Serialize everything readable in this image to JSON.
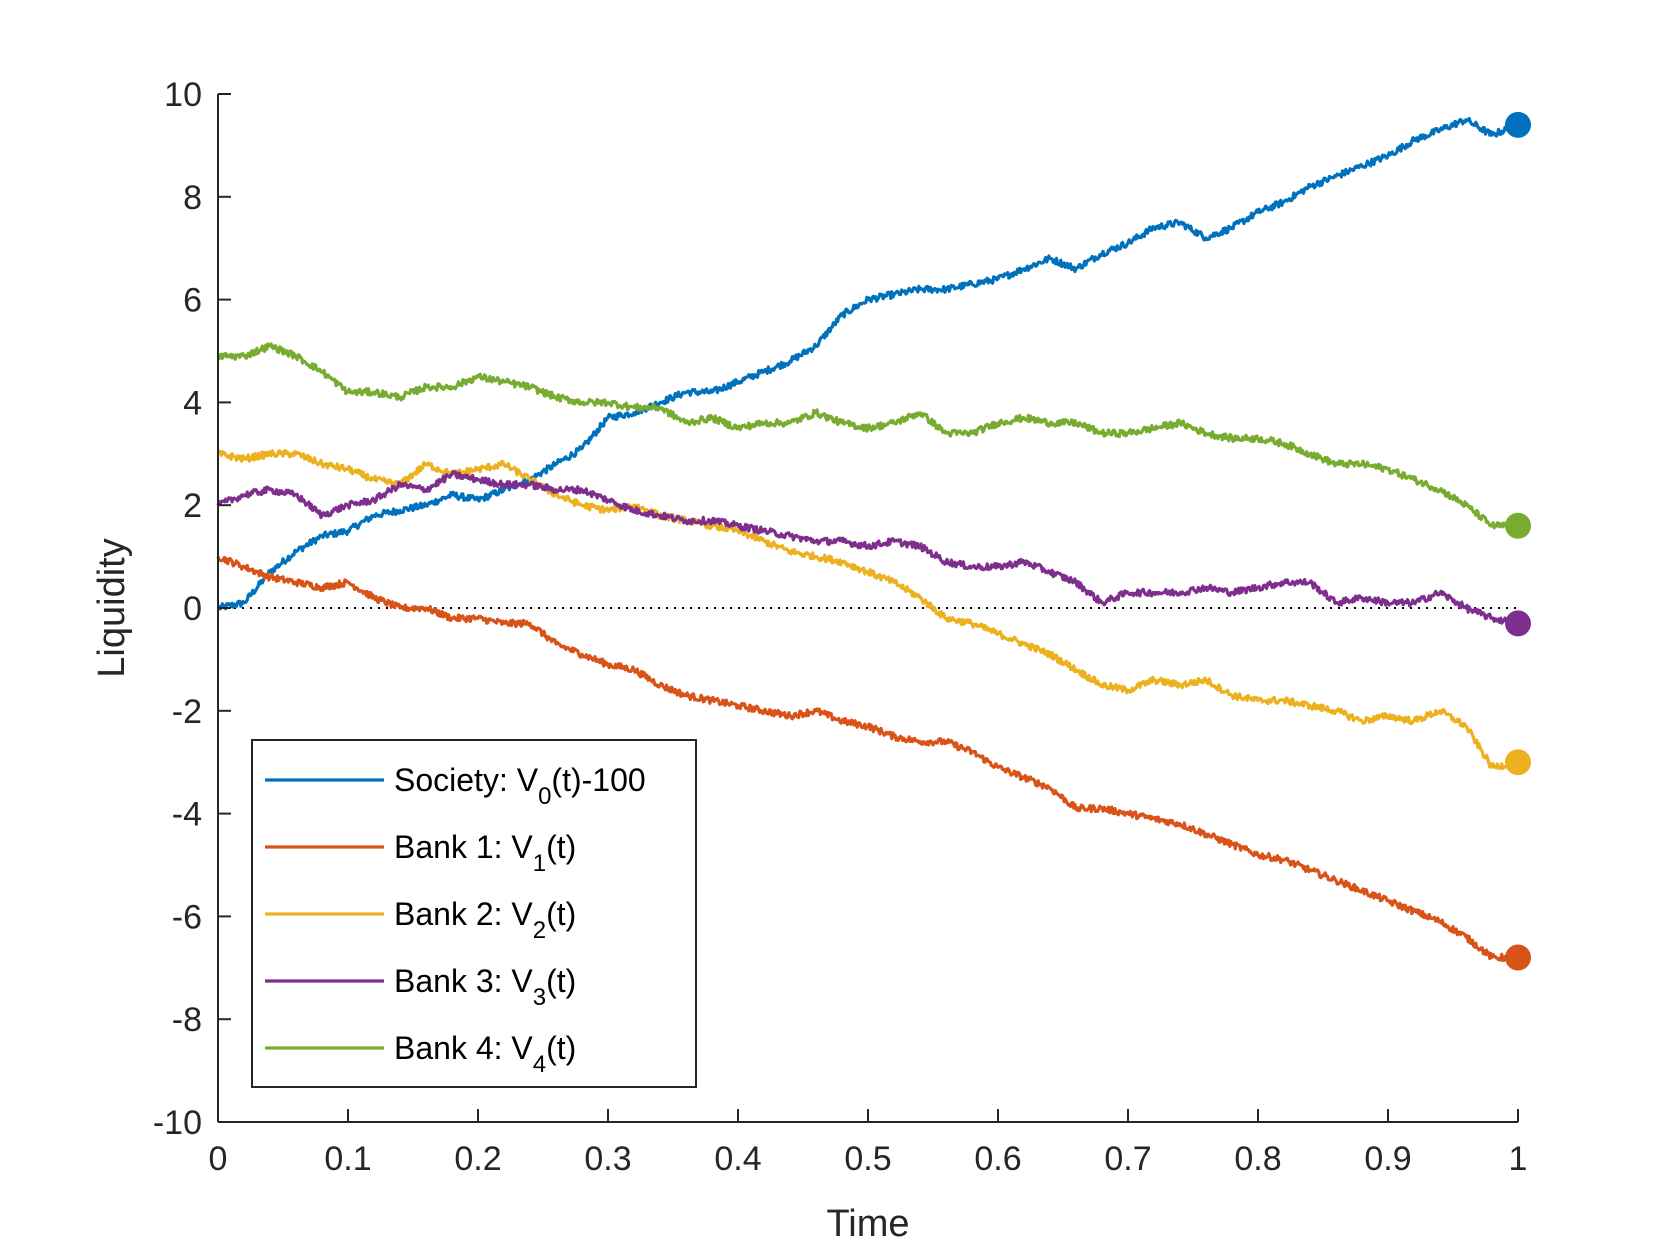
{
  "chart_data": {
    "type": "line",
    "xlabel": "Time",
    "ylabel": "Liquidity",
    "xlim": [
      0,
      1
    ],
    "ylim": [
      -10,
      10
    ],
    "xticks": [
      "0",
      "0.1",
      "0.2",
      "0.3",
      "0.4",
      "0.5",
      "0.6",
      "0.7",
      "0.8",
      "0.9",
      "1"
    ],
    "yticks": [
      "-10",
      "-8",
      "-6",
      "-4",
      "-2",
      "0",
      "2",
      "4",
      "6",
      "8",
      "10"
    ],
    "reference_line": {
      "y": 0,
      "style": "dotted"
    },
    "legend_position": "bottom-left",
    "series": [
      {
        "name": "Society: V0(t)-100",
        "label_prefix": "Society: V",
        "label_sub": "0",
        "label_suffix": "(t)-100",
        "color": "#0072BD",
        "end_marker": true,
        "x": [
          0,
          0.02,
          0.04,
          0.06,
          0.08,
          0.1,
          0.12,
          0.14,
          0.16,
          0.18,
          0.2,
          0.22,
          0.24,
          0.26,
          0.28,
          0.3,
          0.32,
          0.34,
          0.36,
          0.38,
          0.4,
          0.42,
          0.44,
          0.46,
          0.48,
          0.5,
          0.52,
          0.54,
          0.56,
          0.58,
          0.6,
          0.62,
          0.64,
          0.66,
          0.68,
          0.7,
          0.72,
          0.74,
          0.76,
          0.78,
          0.8,
          0.82,
          0.84,
          0.86,
          0.88,
          0.9,
          0.92,
          0.94,
          0.96,
          0.98,
          1
        ],
        "y": [
          0,
          0.1,
          0.7,
          1.1,
          1.4,
          1.5,
          1.8,
          1.9,
          2.0,
          2.2,
          2.1,
          2.3,
          2.5,
          2.8,
          3.1,
          3.7,
          3.8,
          4.0,
          4.2,
          4.2,
          4.4,
          4.6,
          4.8,
          5.1,
          5.7,
          6.0,
          6.1,
          6.2,
          6.2,
          6.3,
          6.4,
          6.6,
          6.8,
          6.6,
          6.9,
          7.1,
          7.4,
          7.5,
          7.2,
          7.4,
          7.7,
          7.9,
          8.2,
          8.4,
          8.6,
          8.8,
          9.1,
          9.3,
          9.5,
          9.2,
          9.4
        ]
      },
      {
        "name": "Bank 1: V1(t)",
        "label_prefix": "Bank 1: V",
        "label_sub": "1",
        "label_suffix": "(t)",
        "color": "#D95319",
        "end_marker": true,
        "x": [
          0,
          0.02,
          0.04,
          0.06,
          0.08,
          0.1,
          0.12,
          0.14,
          0.16,
          0.18,
          0.2,
          0.22,
          0.24,
          0.26,
          0.28,
          0.3,
          0.32,
          0.34,
          0.36,
          0.38,
          0.4,
          0.42,
          0.44,
          0.46,
          0.48,
          0.5,
          0.52,
          0.54,
          0.56,
          0.58,
          0.6,
          0.62,
          0.64,
          0.66,
          0.68,
          0.7,
          0.72,
          0.74,
          0.76,
          0.78,
          0.8,
          0.82,
          0.84,
          0.86,
          0.88,
          0.9,
          0.92,
          0.94,
          0.96,
          0.98,
          1
        ],
        "y": [
          1.0,
          0.8,
          0.6,
          0.5,
          0.4,
          0.5,
          0.2,
          0.0,
          0.0,
          -0.2,
          -0.2,
          -0.3,
          -0.3,
          -0.7,
          -0.9,
          -1.1,
          -1.2,
          -1.5,
          -1.7,
          -1.8,
          -1.9,
          -2.0,
          -2.1,
          -2.0,
          -2.2,
          -2.3,
          -2.5,
          -2.6,
          -2.6,
          -2.8,
          -3.1,
          -3.3,
          -3.5,
          -3.9,
          -3.9,
          -4.0,
          -4.1,
          -4.2,
          -4.4,
          -4.6,
          -4.8,
          -4.9,
          -5.1,
          -5.3,
          -5.5,
          -5.7,
          -5.9,
          -6.1,
          -6.4,
          -6.8,
          -6.8
        ]
      },
      {
        "name": "Bank 2: V2(t)",
        "label_prefix": "Bank 2: V",
        "label_sub": "2",
        "label_suffix": "(t)",
        "color": "#EDB120",
        "end_marker": true,
        "x": [
          0,
          0.02,
          0.04,
          0.06,
          0.08,
          0.1,
          0.12,
          0.14,
          0.16,
          0.18,
          0.2,
          0.22,
          0.24,
          0.26,
          0.28,
          0.3,
          0.32,
          0.34,
          0.36,
          0.38,
          0.4,
          0.42,
          0.44,
          0.46,
          0.48,
          0.5,
          0.52,
          0.54,
          0.56,
          0.58,
          0.6,
          0.62,
          0.64,
          0.66,
          0.68,
          0.7,
          0.72,
          0.74,
          0.76,
          0.78,
          0.8,
          0.82,
          0.84,
          0.86,
          0.88,
          0.9,
          0.92,
          0.94,
          0.96,
          0.98,
          1
        ],
        "y": [
          3.0,
          2.9,
          3.0,
          3.0,
          2.8,
          2.7,
          2.5,
          2.4,
          2.8,
          2.6,
          2.7,
          2.8,
          2.5,
          2.2,
          2.0,
          1.9,
          2.0,
          1.8,
          1.7,
          1.6,
          1.5,
          1.3,
          1.1,
          1.0,
          0.9,
          0.7,
          0.5,
          0.2,
          -0.2,
          -0.3,
          -0.5,
          -0.7,
          -0.9,
          -1.2,
          -1.5,
          -1.6,
          -1.4,
          -1.5,
          -1.4,
          -1.7,
          -1.8,
          -1.8,
          -1.9,
          -2.0,
          -2.2,
          -2.1,
          -2.2,
          -2.0,
          -2.3,
          -3.1,
          -3.0
        ]
      },
      {
        "name": "Bank 3: V3(t)",
        "label_prefix": "Bank 3: V",
        "label_sub": "3",
        "label_suffix": "(t)",
        "color": "#7E2F8E",
        "end_marker": true,
        "x": [
          0,
          0.02,
          0.04,
          0.06,
          0.08,
          0.1,
          0.12,
          0.14,
          0.16,
          0.18,
          0.2,
          0.22,
          0.24,
          0.26,
          0.28,
          0.3,
          0.32,
          0.34,
          0.36,
          0.38,
          0.4,
          0.42,
          0.44,
          0.46,
          0.48,
          0.5,
          0.52,
          0.54,
          0.56,
          0.58,
          0.6,
          0.62,
          0.64,
          0.66,
          0.68,
          0.7,
          0.72,
          0.74,
          0.76,
          0.78,
          0.8,
          0.82,
          0.84,
          0.86,
          0.88,
          0.9,
          0.92,
          0.94,
          0.96,
          0.98,
          1
        ],
        "y": [
          2.0,
          2.2,
          2.3,
          2.2,
          1.8,
          2.0,
          2.1,
          2.4,
          2.3,
          2.6,
          2.5,
          2.4,
          2.4,
          2.3,
          2.3,
          2.1,
          1.9,
          1.8,
          1.7,
          1.7,
          1.6,
          1.5,
          1.4,
          1.3,
          1.3,
          1.2,
          1.3,
          1.2,
          0.9,
          0.8,
          0.8,
          0.9,
          0.7,
          0.5,
          0.1,
          0.3,
          0.3,
          0.3,
          0.4,
          0.3,
          0.4,
          0.5,
          0.5,
          0.1,
          0.2,
          0.1,
          0.1,
          0.3,
          0.0,
          -0.2,
          -0.3
        ]
      },
      {
        "name": "Bank 4: V4(t)",
        "label_prefix": "Bank 4: V",
        "label_sub": "4",
        "label_suffix": "(t)",
        "color": "#77AC30",
        "end_marker": true,
        "x": [
          0,
          0.02,
          0.04,
          0.06,
          0.08,
          0.1,
          0.12,
          0.14,
          0.16,
          0.18,
          0.2,
          0.22,
          0.24,
          0.26,
          0.28,
          0.3,
          0.32,
          0.34,
          0.36,
          0.38,
          0.4,
          0.42,
          0.44,
          0.46,
          0.48,
          0.5,
          0.52,
          0.54,
          0.56,
          0.58,
          0.6,
          0.62,
          0.64,
          0.66,
          0.68,
          0.7,
          0.72,
          0.74,
          0.76,
          0.78,
          0.8,
          0.82,
          0.84,
          0.86,
          0.88,
          0.9,
          0.92,
          0.94,
          0.96,
          0.98,
          1
        ],
        "y": [
          4.9,
          4.9,
          5.1,
          4.9,
          4.6,
          4.2,
          4.2,
          4.1,
          4.3,
          4.3,
          4.5,
          4.4,
          4.3,
          4.1,
          4.0,
          4.0,
          3.9,
          3.9,
          3.6,
          3.7,
          3.5,
          3.6,
          3.6,
          3.8,
          3.6,
          3.5,
          3.6,
          3.8,
          3.4,
          3.4,
          3.6,
          3.7,
          3.6,
          3.6,
          3.4,
          3.4,
          3.5,
          3.6,
          3.4,
          3.3,
          3.3,
          3.2,
          3.0,
          2.8,
          2.8,
          2.7,
          2.5,
          2.3,
          2.0,
          1.6,
          1.6
        ]
      }
    ]
  }
}
